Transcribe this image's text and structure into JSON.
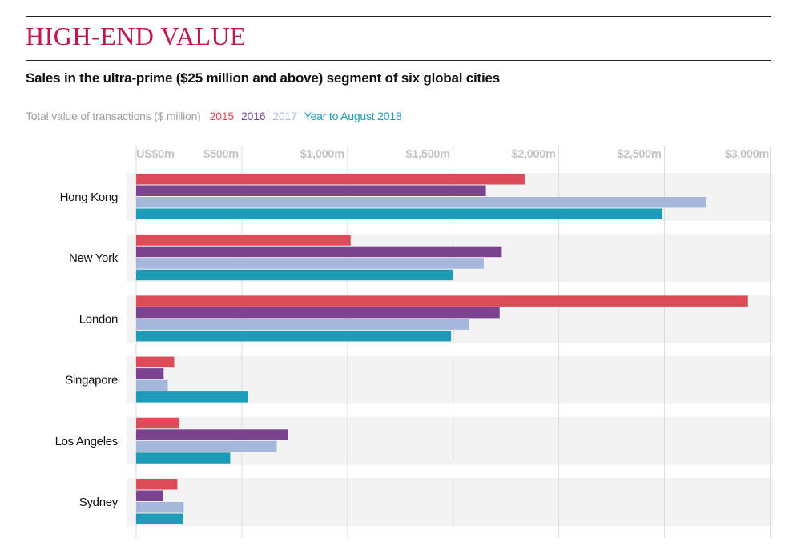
{
  "header": {
    "title": "HIGH-END VALUE",
    "subtitle": "Sales in the ultra-prime ($25 million and above) segment of six global cities"
  },
  "legend": {
    "prefix": "Total value of transactions ($ million)"
  },
  "colors": {
    "2015": "#dc4b57",
    "2016": "#7b4390",
    "2017": "#a5b8dc",
    "Year to August 2018": "#1e9bb8",
    "band": "#f3f3f3",
    "grid": "#dddddd",
    "tick": "#c4c4c4",
    "title": "#c0184a"
  },
  "chart_data": {
    "type": "bar",
    "orientation": "horizontal",
    "title": "HIGH-END VALUE",
    "subtitle": "Sales in the ultra-prime ($25 million and above) segment of six global cities",
    "xlabel": "Total value of transactions ($ million)",
    "ylabel": "",
    "xlim": [
      0,
      3000
    ],
    "x_ticks": [
      0,
      500,
      1000,
      1500,
      2000,
      2500,
      3000
    ],
    "x_tick_labels": [
      "US$0m",
      "$500m",
      "$1,000m",
      "$1,500m",
      "$2,000m",
      "$2,500m",
      "$3,000m"
    ],
    "grid": true,
    "legend_position": "top-left",
    "categories": [
      "Hong Kong",
      "New York",
      "London",
      "Singapore",
      "Los Angeles",
      "Sydney"
    ],
    "series": [
      {
        "name": "2015",
        "values": [
          1840,
          1015,
          2895,
          180,
          205,
          195
        ]
      },
      {
        "name": "2016",
        "values": [
          1655,
          1730,
          1720,
          130,
          720,
          125
        ]
      },
      {
        "name": "2017",
        "values": [
          2695,
          1645,
          1575,
          150,
          665,
          225
        ]
      },
      {
        "name": "Year to August 2018",
        "values": [
          2490,
          1500,
          1490,
          530,
          445,
          220
        ]
      }
    ]
  }
}
